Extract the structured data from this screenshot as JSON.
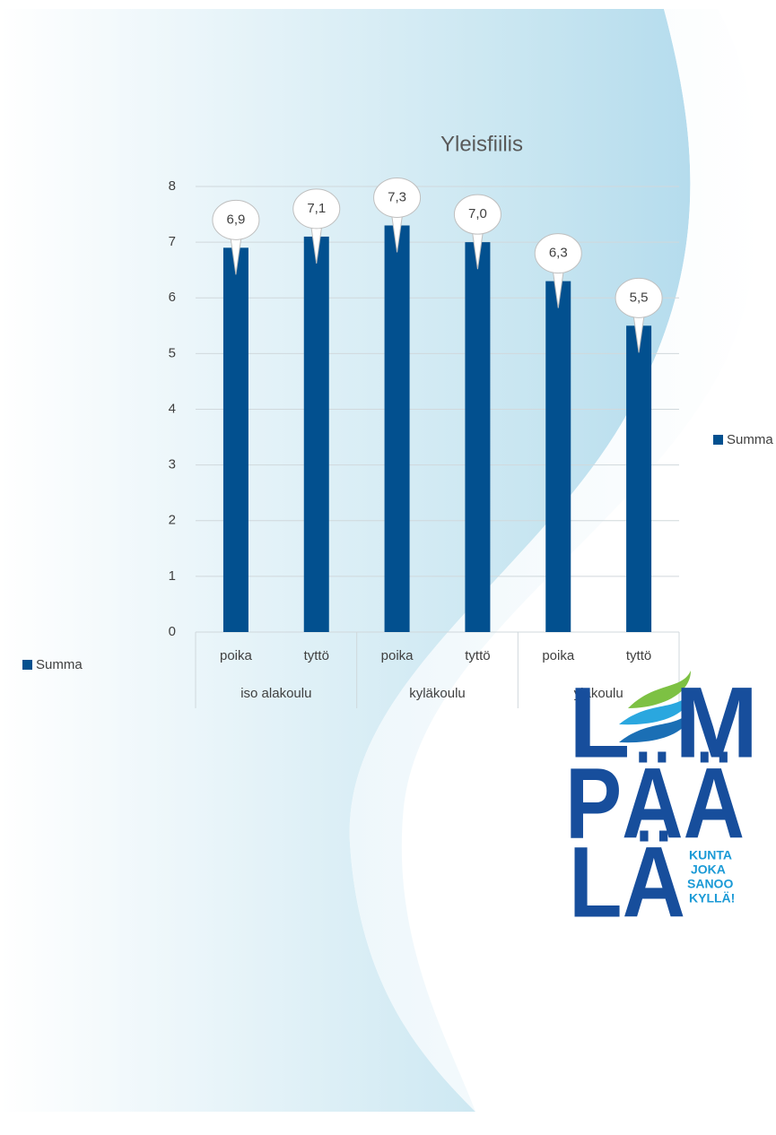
{
  "chart_data": {
    "type": "bar",
    "title": "Yleisfiilis",
    "categories": [
      "poika",
      "tyttö",
      "poika",
      "tyttö",
      "poika",
      "tyttö"
    ],
    "category_groups": [
      "iso alakoulu",
      "kyläkoulu",
      "yläkoulu"
    ],
    "series": [
      {
        "name": "Summa",
        "color": "#02508f",
        "values": [
          6.9,
          7.1,
          7.3,
          7.0,
          6.3,
          5.5
        ],
        "value_labels": [
          "6,9",
          "7,1",
          "7,3",
          "7,0",
          "6,3",
          "5,5"
        ]
      }
    ],
    "ylim": [
      0,
      8
    ],
    "yticks": [
      0,
      1,
      2,
      3,
      4,
      5,
      6,
      7,
      8
    ],
    "grid": true
  },
  "logo": {
    "lines": [
      "L",
      "M",
      "PÄÄ",
      "LÄ"
    ],
    "slogan": [
      "KUNTA",
      "JOKA",
      "SANOO",
      "KYLLÄ!"
    ]
  }
}
